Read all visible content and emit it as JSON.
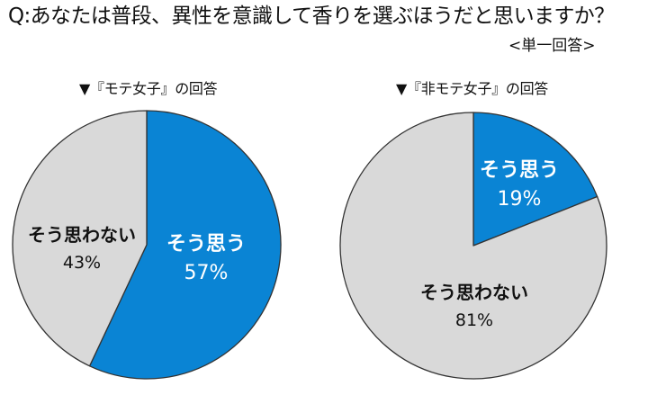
{
  "header": {
    "question": "Q:あなたは普段、異性を意識して香りを選ぶほうだと思いますか？",
    "answer_type": "<単一回答>"
  },
  "colors": {
    "yes": "#0A84D4",
    "no": "#D9D9D9",
    "outline": "#333333"
  },
  "charts": [
    {
      "heading": "▼『モテ女子』の回答",
      "slices": [
        {
          "label": "そう思う",
          "percent_label": "57%",
          "value": 57
        },
        {
          "label": "そう思わない",
          "percent_label": "43%",
          "value": 43
        }
      ]
    },
    {
      "heading": "▼『非モテ女子』の回答",
      "slices": [
        {
          "label": "そう思う",
          "percent_label": "19%",
          "value": 19
        },
        {
          "label": "そう思わない",
          "percent_label": "81%",
          "value": 81
        }
      ]
    }
  ],
  "chart_data": [
    {
      "type": "pie",
      "title": "▼『モテ女子』の回答",
      "categories": [
        "そう思う",
        "そう思わない"
      ],
      "values": [
        57,
        43
      ],
      "unit": "%",
      "start_angle": "12 o'clock",
      "direction": "clockwise",
      "colors": [
        "#0A84D4",
        "#D9D9D9"
      ]
    },
    {
      "type": "pie",
      "title": "▼『非モテ女子』の回答",
      "categories": [
        "そう思う",
        "そう思わない"
      ],
      "values": [
        19,
        81
      ],
      "unit": "%",
      "start_angle": "12 o'clock",
      "direction": "clockwise",
      "colors": [
        "#0A84D4",
        "#D9D9D9"
      ]
    }
  ]
}
